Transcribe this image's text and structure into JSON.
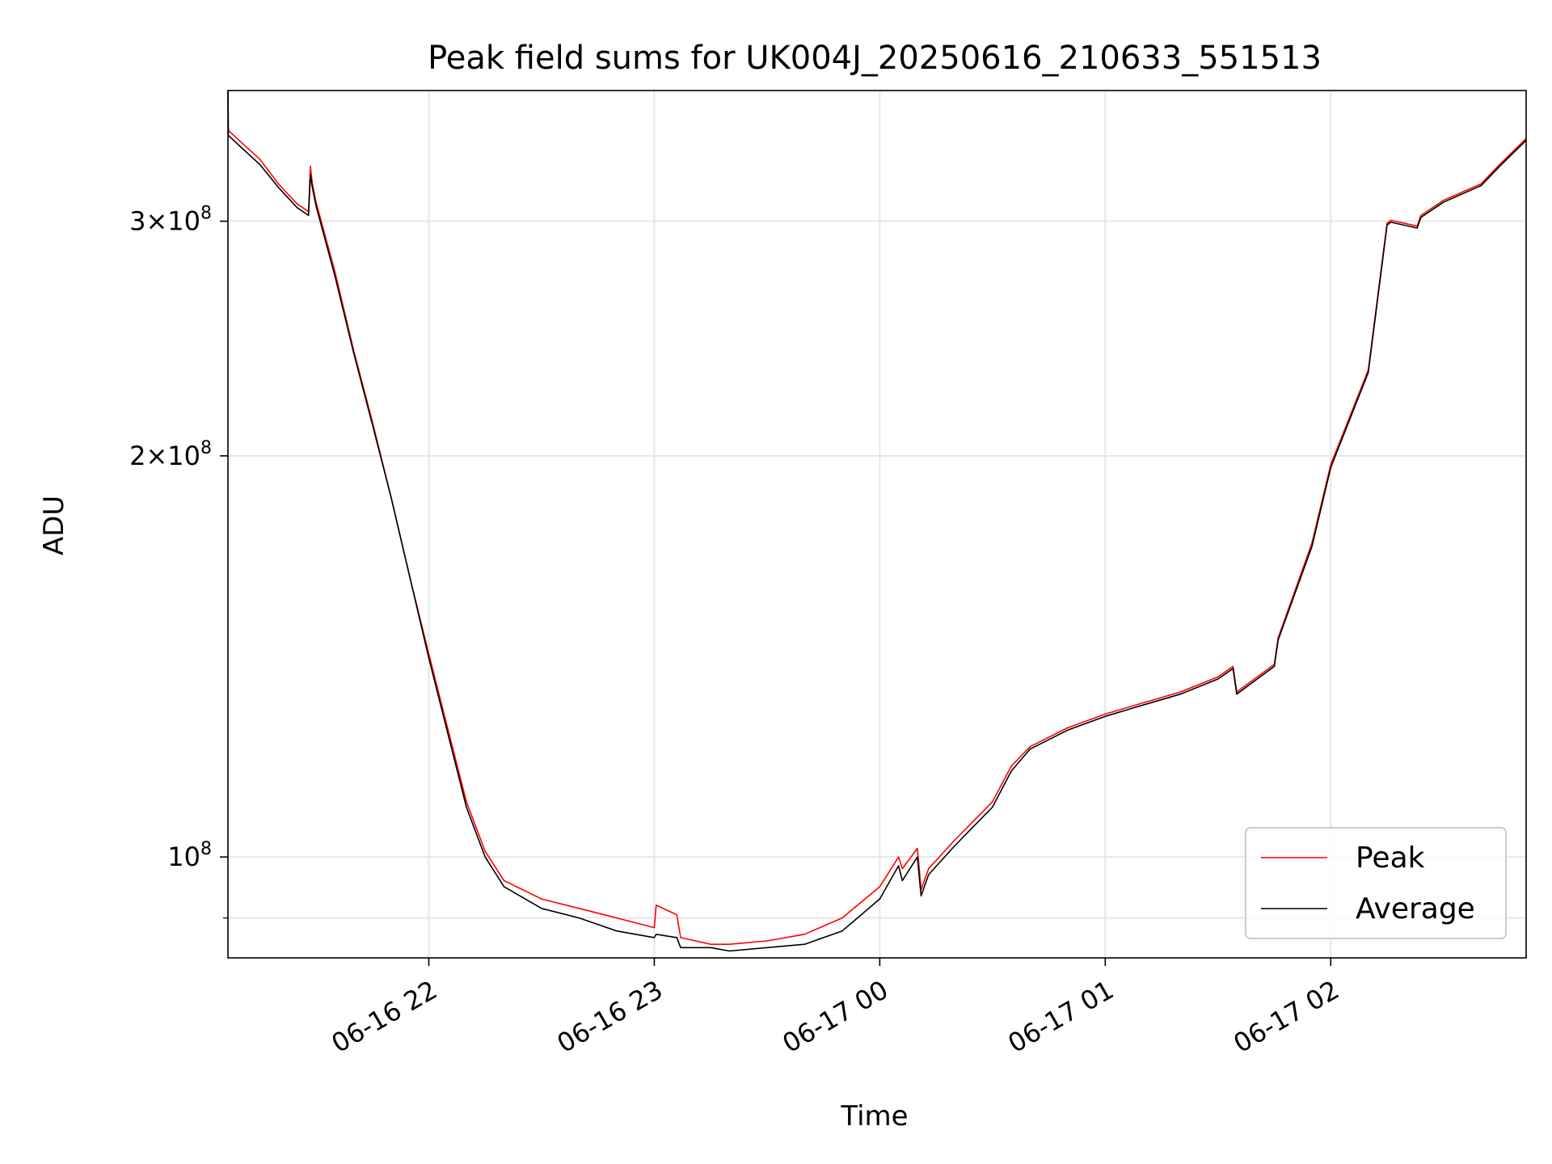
{
  "chart_data": {
    "type": "line",
    "title": "Peak field sums for UK004J_20250616_210633_551513",
    "xlabel": "Time",
    "ylabel": "ADU",
    "yscale": "log",
    "xlim": [
      "2025-06-16 21:06:33",
      "2025-06-17 02:52:00"
    ],
    "ylim": [
      84000000,
      376000000
    ],
    "grid": true,
    "legend_position": "lower-right",
    "x_ticks": [
      {
        "value": "2025-06-16 22:00",
        "label": "06-16 22"
      },
      {
        "value": "2025-06-16 23:00",
        "label": "06-16 23"
      },
      {
        "value": "2025-06-17 00:00",
        "label": "06-17 00"
      },
      {
        "value": "2025-06-17 01:00",
        "label": "06-17 01"
      },
      {
        "value": "2025-06-17 02:00",
        "label": "06-17 02"
      }
    ],
    "y_ticks": [
      {
        "value": 100000000,
        "label_mantissa": "",
        "label_base": "10",
        "label_exp": "8"
      },
      {
        "value": 200000000,
        "label_mantissa": "2",
        "label_base": "10",
        "label_exp": "8"
      },
      {
        "value": 300000000,
        "label_mantissa": "3",
        "label_base": "10",
        "label_exp": "8"
      }
    ],
    "y_minor_ticks": [
      90000000
    ],
    "series": [
      {
        "name": "Peak",
        "color": "#ff0000",
        "x": [
          "2025-06-16 21:06:33",
          "2025-06-16 21:06:40",
          "2025-06-16 21:10",
          "2025-06-16 21:15",
          "2025-06-16 21:20",
          "2025-06-16 21:25",
          "2025-06-16 21:28",
          "2025-06-16 21:28:30",
          "2025-06-16 21:29",
          "2025-06-16 21:30",
          "2025-06-16 21:35",
          "2025-06-16 21:40",
          "2025-06-16 21:45",
          "2025-06-16 21:50",
          "2025-06-16 21:55",
          "2025-06-16 22:00",
          "2025-06-16 22:05",
          "2025-06-16 22:10",
          "2025-06-16 22:15",
          "2025-06-16 22:20",
          "2025-06-16 22:30",
          "2025-06-16 22:40",
          "2025-06-16 22:50",
          "2025-06-16 23:00",
          "2025-06-16 23:00:30",
          "2025-06-16 23:06",
          "2025-06-16 23:07",
          "2025-06-16 23:15",
          "2025-06-16 23:20",
          "2025-06-16 23:30",
          "2025-06-16 23:40",
          "2025-06-16 23:50",
          "2025-06-17 00:00",
          "2025-06-17 00:05",
          "2025-06-17 00:06",
          "2025-06-17 00:10",
          "2025-06-17 00:11",
          "2025-06-17 00:13",
          "2025-06-17 00:20",
          "2025-06-17 00:30",
          "2025-06-17 00:35",
          "2025-06-17 00:40",
          "2025-06-17 00:50",
          "2025-06-17 01:00",
          "2025-06-17 01:10",
          "2025-06-17 01:20",
          "2025-06-17 01:30",
          "2025-06-17 01:34",
          "2025-06-17 01:35",
          "2025-06-17 01:45",
          "2025-06-17 01:46",
          "2025-06-17 01:55",
          "2025-06-17 02:00",
          "2025-06-17 02:10",
          "2025-06-17 02:15",
          "2025-06-17 02:16",
          "2025-06-17 02:23",
          "2025-06-17 02:24",
          "2025-06-17 02:30",
          "2025-06-17 02:40",
          "2025-06-17 02:45",
          "2025-06-17 02:52"
        ],
        "y": [
          376000000,
          351000000,
          344000000,
          334000000,
          320000000,
          309000000,
          305000000,
          330000000,
          320000000,
          310000000,
          275000000,
          240000000,
          212000000,
          186000000,
          162000000,
          142000000,
          125000000,
          110000000,
          101000000,
          96000000,
          93000000,
          91500000,
          90000000,
          88500000,
          92000000,
          90500000,
          87000000,
          86000000,
          86000000,
          86500000,
          87500000,
          90000000,
          95000000,
          100000000,
          98000000,
          101500000,
          94500000,
          98000000,
          103000000,
          110000000,
          117000000,
          121000000,
          125000000,
          128000000,
          130500000,
          133000000,
          136500000,
          139000000,
          133000000,
          139500000,
          146000000,
          172000000,
          197000000,
          232000000,
          299000000,
          300500000,
          297500000,
          303000000,
          311000000,
          320000000,
          331000000,
          346000000
        ]
      },
      {
        "name": "Average",
        "color": "#000000",
        "x": [
          "2025-06-16 21:06:33",
          "2025-06-16 21:06:40",
          "2025-06-16 21:10",
          "2025-06-16 21:15",
          "2025-06-16 21:20",
          "2025-06-16 21:25",
          "2025-06-16 21:28",
          "2025-06-16 21:28:30",
          "2025-06-16 21:29",
          "2025-06-16 21:30",
          "2025-06-16 21:35",
          "2025-06-16 21:40",
          "2025-06-16 21:45",
          "2025-06-16 21:50",
          "2025-06-16 21:55",
          "2025-06-16 22:00",
          "2025-06-16 22:05",
          "2025-06-16 22:10",
          "2025-06-16 22:15",
          "2025-06-16 22:20",
          "2025-06-16 22:30",
          "2025-06-16 22:40",
          "2025-06-16 22:50",
          "2025-06-16 23:00",
          "2025-06-16 23:00:30",
          "2025-06-16 23:06",
          "2025-06-16 23:07",
          "2025-06-16 23:15",
          "2025-06-16 23:20",
          "2025-06-16 23:30",
          "2025-06-16 23:40",
          "2025-06-16 23:50",
          "2025-06-17 00:00",
          "2025-06-17 00:05",
          "2025-06-17 00:06",
          "2025-06-17 00:10",
          "2025-06-17 00:11",
          "2025-06-17 00:13",
          "2025-06-17 00:20",
          "2025-06-17 00:30",
          "2025-06-17 00:35",
          "2025-06-17 00:40",
          "2025-06-17 00:50",
          "2025-06-17 01:00",
          "2025-06-17 01:10",
          "2025-06-17 01:20",
          "2025-06-17 01:30",
          "2025-06-17 01:34",
          "2025-06-17 01:35",
          "2025-06-17 01:45",
          "2025-06-17 01:46",
          "2025-06-17 01:55",
          "2025-06-17 02:00",
          "2025-06-17 02:10",
          "2025-06-17 02:15",
          "2025-06-17 02:16",
          "2025-06-17 02:23",
          "2025-06-17 02:24",
          "2025-06-17 02:30",
          "2025-06-17 02:40",
          "2025-06-17 02:45",
          "2025-06-17 02:52"
        ],
        "y": [
          376000000,
          348000000,
          341000000,
          331000000,
          318000000,
          307000000,
          303000000,
          325000000,
          318000000,
          308000000,
          273000000,
          239000000,
          211000000,
          186000000,
          162000000,
          141000000,
          124000000,
          109000000,
          100000000,
          95000000,
          91500000,
          90000000,
          88000000,
          87000000,
          87500000,
          87000000,
          85500000,
          85500000,
          85000000,
          85500000,
          86000000,
          88000000,
          93000000,
          98500000,
          96000000,
          100000000,
          93500000,
          97000000,
          102000000,
          109000000,
          116000000,
          120500000,
          124500000,
          127500000,
          130000000,
          132500000,
          136000000,
          138500000,
          132500000,
          139000000,
          145500000,
          171000000,
          196000000,
          231000000,
          298000000,
          299500000,
          296500000,
          302000000,
          310000000,
          319000000,
          330000000,
          345000000
        ]
      }
    ]
  }
}
